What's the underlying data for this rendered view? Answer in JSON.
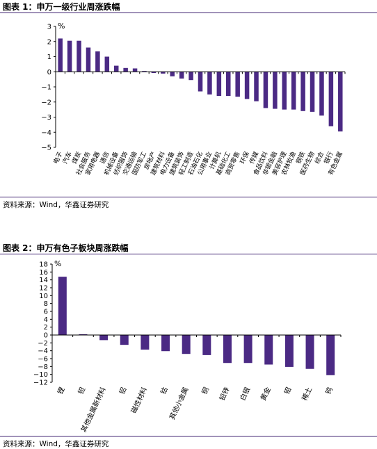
{
  "bar_color": "#4b2a84",
  "chart_data": [
    {
      "type": "bar",
      "title": "图表 1：申万一级行业周涨跌幅",
      "unit_label": "%",
      "source": "资料来源：Wind，华鑫证券研究",
      "ylim": [
        -5,
        3
      ],
      "yticks": [
        3,
        2,
        1,
        0,
        -1,
        -2,
        -3,
        -4,
        -5
      ],
      "tick_labels": [
        "3",
        "2",
        "1",
        "0",
        "−1",
        "−2",
        "−3",
        "−4",
        "−5"
      ],
      "grid": false,
      "categories": [
        "电子",
        "汽车",
        "煤炭",
        "社会服务",
        "家用电器",
        "通信",
        "机械设备",
        "纺织服饰",
        "交通运输",
        "国防军工",
        "房地产",
        "建筑材料",
        "电力设备",
        "建筑装饰",
        "轻工制造",
        "石油石化",
        "公用事业",
        "计算机",
        "基础化工",
        "商贸零售",
        "环保",
        "传媒",
        "食品饮料",
        "非银金融",
        "美容护理",
        "农林牧渔",
        "钢铁",
        "医药生物",
        "综合",
        "银行",
        "有色金属"
      ],
      "values": [
        2.2,
        2.05,
        2.05,
        1.6,
        1.35,
        1.0,
        0.4,
        0.25,
        0.22,
        0.05,
        -0.08,
        -0.12,
        -0.3,
        -0.45,
        -0.55,
        -1.3,
        -1.5,
        -1.6,
        -1.6,
        -1.65,
        -1.8,
        -1.95,
        -2.4,
        -2.45,
        -2.5,
        -2.5,
        -2.6,
        -2.65,
        -2.9,
        -3.6,
        -3.95
      ]
    },
    {
      "type": "bar",
      "title": "图表 2：申万有色子板块周涨跌幅",
      "unit_label": "%",
      "source": "资料来源：Wind，华鑫证券研究",
      "ylim": [
        -12,
        18
      ],
      "yticks": [
        18,
        16,
        14,
        12,
        10,
        8,
        6,
        4,
        2,
        0,
        -2,
        -4,
        -6,
        -8,
        -10,
        -12
      ],
      "tick_labels": [
        "18",
        "16",
        "14",
        "12",
        "10",
        "8",
        "6",
        "4",
        "2",
        "0",
        "−2",
        "−4",
        "−6",
        "−8",
        "−10",
        "−12"
      ],
      "grid": false,
      "categories": [
        "锂",
        "钽",
        "其他金属新材料",
        "铝",
        "磁性材料",
        "钴",
        "其他小金属",
        "铜",
        "铅锌",
        "白银",
        "黄金",
        "钼",
        "稀土",
        "钨"
      ],
      "values": [
        14.8,
        0.2,
        -1.3,
        -2.5,
        -3.7,
        -4.1,
        -4.8,
        -5.1,
        -7.1,
        -7.1,
        -7.5,
        -8.1,
        -8.6,
        -10.2
      ]
    }
  ]
}
